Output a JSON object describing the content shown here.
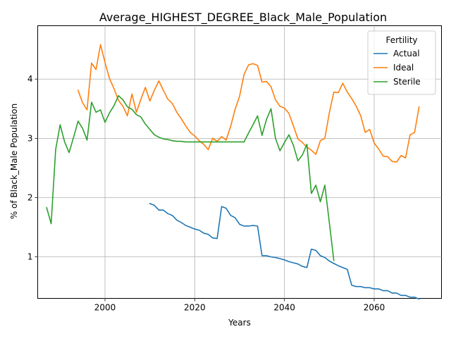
{
  "colors": {
    "actual": "#1f77b4",
    "ideal": "#ff7f0e",
    "sterile": "#2ca02c",
    "grid": "#b0b0b0",
    "axis": "#000000",
    "legend_border": "#cccccc"
  },
  "chart_data": {
    "type": "line",
    "title": "Average_HIGHEST_DEGREE_Black_Male_Population",
    "xlabel": "Years",
    "ylabel": "% of Black_Male Population",
    "xlim": [
      1985,
      2075
    ],
    "ylim": [
      0.3,
      4.9
    ],
    "grid": true,
    "xticks": [
      2000,
      2020,
      2040,
      2060
    ],
    "yticks": [
      1,
      2,
      3,
      4
    ],
    "legend": {
      "title": "Fertility",
      "location": "top-right"
    },
    "series": [
      {
        "name": "Actual",
        "color_key": "actual",
        "x": [
          2010,
          2011,
          2012,
          2013,
          2014,
          2015,
          2016,
          2017,
          2018,
          2019,
          2020,
          2021,
          2022,
          2023,
          2024,
          2025,
          2026,
          2027,
          2028,
          2029,
          2030,
          2031,
          2032,
          2033,
          2034,
          2035,
          2036,
          2037,
          2038,
          2039,
          2040,
          2041,
          2042,
          2043,
          2044,
          2045,
          2046,
          2047,
          2048,
          2049,
          2050,
          2051,
          2052,
          2053,
          2054,
          2055,
          2056,
          2057,
          2058,
          2059,
          2060,
          2061,
          2062,
          2063,
          2064,
          2065,
          2066,
          2067,
          2068,
          2069,
          2070
        ],
        "values": [
          1.9,
          1.87,
          1.79,
          1.79,
          1.73,
          1.7,
          1.62,
          1.58,
          1.53,
          1.5,
          1.47,
          1.45,
          1.4,
          1.38,
          1.32,
          1.31,
          1.85,
          1.82,
          1.7,
          1.66,
          1.55,
          1.52,
          1.52,
          1.53,
          1.52,
          1.02,
          1.02,
          1.0,
          0.99,
          0.97,
          0.95,
          0.92,
          0.9,
          0.88,
          0.84,
          0.82,
          1.13,
          1.11,
          1.02,
          0.99,
          0.93,
          0.89,
          0.85,
          0.82,
          0.79,
          0.52,
          0.5,
          0.5,
          0.48,
          0.48,
          0.46,
          0.46,
          0.43,
          0.43,
          0.39,
          0.39,
          0.35,
          0.35,
          0.32,
          0.32,
          0.29
        ]
      },
      {
        "name": "Ideal",
        "color_key": "ideal",
        "x": [
          1994,
          1995,
          1996,
          1997,
          1998,
          1999,
          2000,
          2001,
          2002,
          2003,
          2004,
          2005,
          2006,
          2007,
          2008,
          2009,
          2010,
          2011,
          2012,
          2013,
          2014,
          2015,
          2016,
          2017,
          2018,
          2019,
          2020,
          2021,
          2022,
          2023,
          2024,
          2025,
          2026,
          2027,
          2028,
          2029,
          2030,
          2031,
          2032,
          2033,
          2034,
          2035,
          2036,
          2037,
          2038,
          2039,
          2040,
          2041,
          2042,
          2043,
          2044,
          2045,
          2046,
          2047,
          2048,
          2049,
          2050,
          2051,
          2052,
          2053,
          2054,
          2055,
          2056,
          2057,
          2058,
          2059,
          2060,
          2061,
          2062,
          2063,
          2064,
          2065,
          2066,
          2067,
          2068,
          2069,
          2070
        ],
        "values": [
          3.81,
          3.6,
          3.48,
          4.27,
          4.16,
          4.58,
          4.28,
          4.01,
          3.84,
          3.64,
          3.54,
          3.38,
          3.75,
          3.44,
          3.66,
          3.86,
          3.63,
          3.81,
          3.97,
          3.81,
          3.66,
          3.59,
          3.44,
          3.33,
          3.21,
          3.1,
          3.04,
          2.96,
          2.9,
          2.81,
          3.0,
          2.95,
          3.03,
          2.97,
          3.2,
          3.49,
          3.71,
          4.08,
          4.24,
          4.26,
          4.23,
          3.95,
          3.96,
          3.87,
          3.65,
          3.54,
          3.51,
          3.42,
          3.21,
          2.99,
          2.93,
          2.85,
          2.8,
          2.73,
          2.96,
          3.0,
          3.43,
          3.78,
          3.77,
          3.93,
          3.78,
          3.67,
          3.54,
          3.38,
          3.1,
          3.15,
          2.92,
          2.82,
          2.7,
          2.69,
          2.61,
          2.6,
          2.71,
          2.67,
          3.06,
          3.1,
          3.53
        ]
      },
      {
        "name": "Sterile",
        "color_key": "sterile",
        "x": [
          1987,
          1988,
          1989,
          1990,
          1991,
          1992,
          1993,
          1994,
          1995,
          1996,
          1997,
          1998,
          1999,
          2000,
          2001,
          2002,
          2003,
          2004,
          2005,
          2006,
          2007,
          2008,
          2009,
          2010,
          2011,
          2012,
          2013,
          2014,
          2015,
          2016,
          2017,
          2018,
          2019,
          2020,
          2021,
          2022,
          2023,
          2024,
          2025,
          2026,
          2027,
          2028,
          2029,
          2030,
          2031,
          2032,
          2033,
          2034,
          2035,
          2036,
          2037,
          2038,
          2039,
          2040,
          2041,
          2042,
          2043,
          2044,
          2045,
          2046,
          2047,
          2048,
          2049,
          2050,
          2051
        ],
        "values": [
          1.83,
          1.56,
          2.81,
          3.23,
          2.94,
          2.76,
          3.02,
          3.29,
          3.17,
          2.97,
          3.61,
          3.44,
          3.48,
          3.27,
          3.43,
          3.55,
          3.72,
          3.65,
          3.53,
          3.49,
          3.4,
          3.36,
          3.24,
          3.15,
          3.06,
          3.02,
          2.99,
          2.98,
          2.96,
          2.95,
          2.95,
          2.94,
          2.94,
          2.94,
          2.94,
          2.94,
          2.94,
          2.94,
          2.94,
          2.94,
          2.94,
          2.94,
          2.94,
          2.94,
          2.94,
          3.09,
          3.23,
          3.38,
          3.05,
          3.32,
          3.5,
          3.0,
          2.79,
          2.93,
          3.06,
          2.88,
          2.62,
          2.72,
          2.9,
          2.07,
          2.21,
          1.93,
          2.21,
          1.58,
          0.94
        ]
      }
    ]
  }
}
